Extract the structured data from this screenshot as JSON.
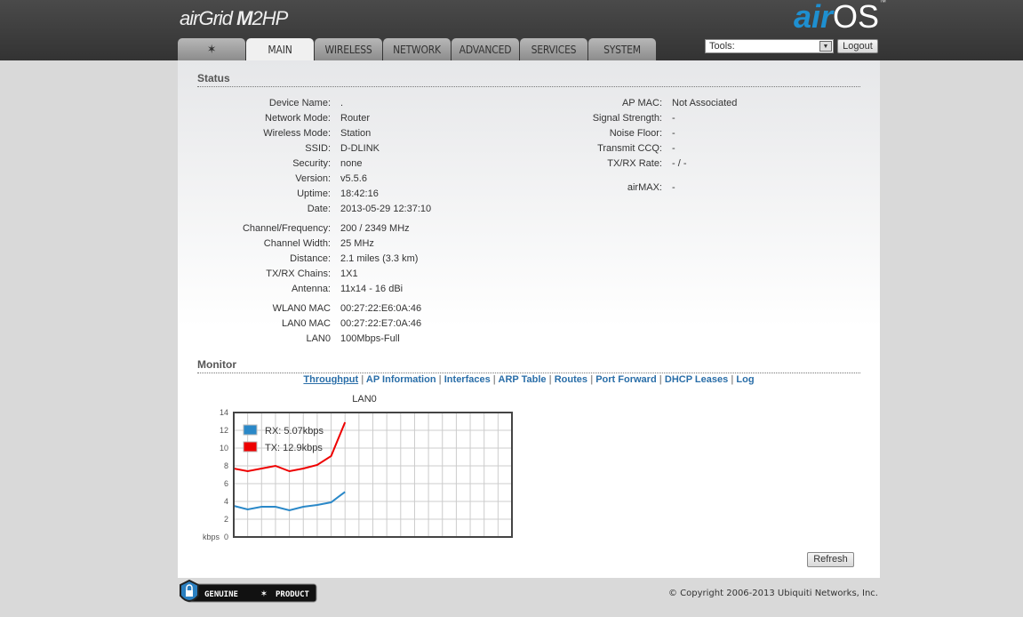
{
  "header": {
    "product": "airGrid M2HP",
    "product_a": "air",
    "product_b": "Grid ",
    "product_c": "M",
    "product_d": "2HP",
    "brand_a": "air",
    "brand_b": "OS",
    "brand_tm": "™"
  },
  "tabs": [
    {
      "label": "",
      "icon": "ubiquiti-logo-icon"
    },
    {
      "label": "MAIN",
      "active": true
    },
    {
      "label": "WIRELESS"
    },
    {
      "label": "NETWORK"
    },
    {
      "label": "ADVANCED"
    },
    {
      "label": "SERVICES"
    },
    {
      "label": "SYSTEM"
    }
  ],
  "tools": {
    "label": "Tools:",
    "logout": "Logout"
  },
  "status": {
    "title": "Status",
    "left": [
      {
        "label": "Device Name:",
        "value": "."
      },
      {
        "label": "Network Mode:",
        "value": "Router"
      },
      {
        "label": "Wireless Mode:",
        "value": "Station"
      },
      {
        "label": "SSID:",
        "value": "D-DLINK"
      },
      {
        "label": "Security:",
        "value": "none"
      },
      {
        "label": "Version:",
        "value": "v5.5.6"
      },
      {
        "label": "Uptime:",
        "value": "18:42:16"
      },
      {
        "label": "Date:",
        "value": "2013-05-29 12:37:10"
      },
      {
        "label": "Channel/Frequency:",
        "value": "200 / 2349 MHz"
      },
      {
        "label": "Channel Width:",
        "value": "25 MHz"
      },
      {
        "label": "Distance:",
        "value": "2.1 miles (3.3 km)"
      },
      {
        "label": "TX/RX Chains:",
        "value": "1X1"
      },
      {
        "label": "Antenna:",
        "value": "11x14 - 16 dBi"
      },
      {
        "label": "WLAN0 MAC",
        "value": "00:27:22:E6:0A:46"
      },
      {
        "label": "LAN0 MAC",
        "value": "00:27:22:E7:0A:46"
      },
      {
        "label": "LAN0",
        "value": "100Mbps-Full"
      }
    ],
    "right": [
      {
        "label": "AP MAC:",
        "value": "Not Associated"
      },
      {
        "label": "Signal Strength:",
        "value": "-"
      },
      {
        "label": "Noise Floor:",
        "value": "-"
      },
      {
        "label": "Transmit CCQ:",
        "value": "-"
      },
      {
        "label": "TX/RX Rate:",
        "value": "- / -"
      },
      {
        "label": "airMAX:",
        "value": "-"
      }
    ]
  },
  "monitor": {
    "title": "Monitor",
    "links": [
      "Throughput",
      "AP Information",
      "Interfaces",
      "ARP Table",
      "Routes",
      "Port Forward",
      "DHCP Leases",
      "Log"
    ],
    "active": "Throughput"
  },
  "chart_data": {
    "type": "line",
    "title": "LAN0",
    "ylabel": "kbps",
    "ylim": [
      0,
      14
    ],
    "yticks": [
      "0",
      "2",
      "4",
      "6",
      "8",
      "10",
      "12",
      "14"
    ],
    "grid": true,
    "legend": "top-left",
    "series": [
      {
        "name": "RX: 5.07kbps",
        "color": "#2a88c8",
        "values": [
          3.5,
          3.1,
          3.4,
          3.4,
          3.0,
          3.4,
          3.6,
          3.9,
          5.07
        ]
      },
      {
        "name": "TX: 12.9kbps",
        "color": "#ee0000",
        "values": [
          7.7,
          7.4,
          7.7,
          8.0,
          7.4,
          7.7,
          8.1,
          9.1,
          12.9
        ]
      }
    ]
  },
  "refresh": "Refresh",
  "footer": {
    "genuine_a": "GENUINE",
    "genuine_b": "PRODUCT",
    "copyright": "© Copyright 2006-2013 Ubiquiti Networks, Inc."
  }
}
